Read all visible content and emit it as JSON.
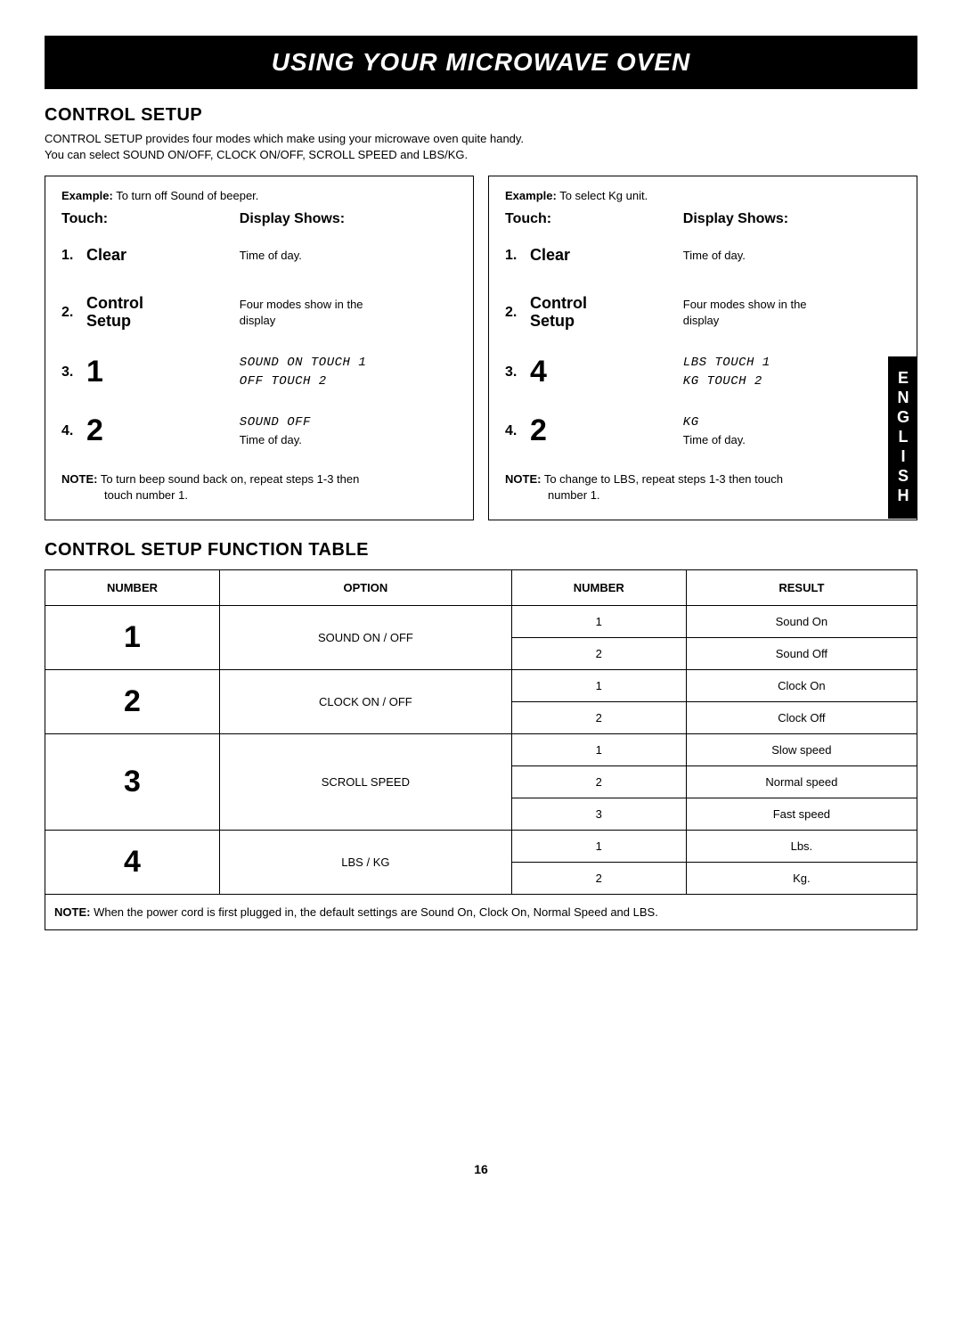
{
  "banner": "USING YOUR MICROWAVE OVEN",
  "section1_title": "CONTROL SETUP",
  "intro_line1": "CONTROL SETUP provides four modes which make using your microwave oven quite handy.",
  "intro_line2": "You can select SOUND ON/OFF, CLOCK ON/OFF, SCROLL SPEED and LBS/KG.",
  "example_left": {
    "title": "Example: To turn off Sound of beeper.",
    "touch_label": "Touch:",
    "display_label": "Display Shows:",
    "steps": [
      {
        "num": "1.",
        "touch": "Clear",
        "big": false,
        "disp": [
          "Time of day."
        ],
        "seg": false
      },
      {
        "num": "2.",
        "touch": "Control\nSetup",
        "big": false,
        "disp": [
          "Four modes show in the",
          "display"
        ],
        "seg": false
      },
      {
        "num": "3.",
        "touch": "1",
        "big": true,
        "disp": [
          "SOUND ON TOUCH 1",
          "OFF TOUCH 2"
        ],
        "seg": true
      },
      {
        "num": "4.",
        "touch": "2",
        "big": true,
        "disp": [
          "SOUND OFF",
          "Time of day."
        ],
        "seg": "mixed"
      }
    ],
    "note_bold": "NOTE:",
    "note_text": " To turn beep sound back on, repeat steps 1-3 then",
    "note_cont": "touch number 1."
  },
  "example_right": {
    "title": "Example: To select Kg unit.",
    "touch_label": "Touch:",
    "display_label": "Display Shows:",
    "steps": [
      {
        "num": "1.",
        "touch": "Clear",
        "big": false,
        "disp": [
          "Time of day."
        ],
        "seg": false
      },
      {
        "num": "2.",
        "touch": "Control\nSetup",
        "big": false,
        "disp": [
          "Four modes show in the",
          "display"
        ],
        "seg": false
      },
      {
        "num": "3.",
        "touch": "4",
        "big": true,
        "disp": [
          "LBS TOUCH 1",
          "KG TOUCH 2"
        ],
        "seg": true
      },
      {
        "num": "4.",
        "touch": "2",
        "big": true,
        "disp": [
          "KG",
          "Time of day."
        ],
        "seg": "mixed"
      }
    ],
    "note_bold": "NOTE:",
    "note_text": " To change to LBS, repeat steps 1-3 then touch",
    "note_cont": "number 1."
  },
  "section2_title": "CONTROL SETUP FUNCTION TABLE",
  "func_table": {
    "headers": [
      "NUMBER",
      "OPTION",
      "NUMBER",
      "RESULT"
    ],
    "groups": [
      {
        "num": "1",
        "option": "SOUND ON / OFF",
        "rows": [
          {
            "n": "1",
            "r": "Sound On"
          },
          {
            "n": "2",
            "r": "Sound Off"
          }
        ]
      },
      {
        "num": "2",
        "option": "CLOCK ON / OFF",
        "rows": [
          {
            "n": "1",
            "r": "Clock On"
          },
          {
            "n": "2",
            "r": "Clock Off"
          }
        ]
      },
      {
        "num": "3",
        "option": "SCROLL SPEED",
        "rows": [
          {
            "n": "1",
            "r": "Slow speed"
          },
          {
            "n": "2",
            "r": "Normal speed"
          },
          {
            "n": "3",
            "r": "Fast speed"
          }
        ]
      },
      {
        "num": "4",
        "option": "LBS / KG",
        "rows": [
          {
            "n": "1",
            "r": "Lbs."
          },
          {
            "n": "2",
            "r": "Kg."
          }
        ]
      }
    ],
    "note_bold": "NOTE:",
    "note_text": " When the power cord is first plugged in, the default settings are Sound On, Clock On, Normal Speed and LBS."
  },
  "side_tab": "ENGLISH",
  "page_number": "16",
  "colors": {
    "banner_bg": "#000000",
    "banner_fg": "#ffffff",
    "page_bg": "#ffffff",
    "text": "#000000",
    "border": "#000000"
  }
}
